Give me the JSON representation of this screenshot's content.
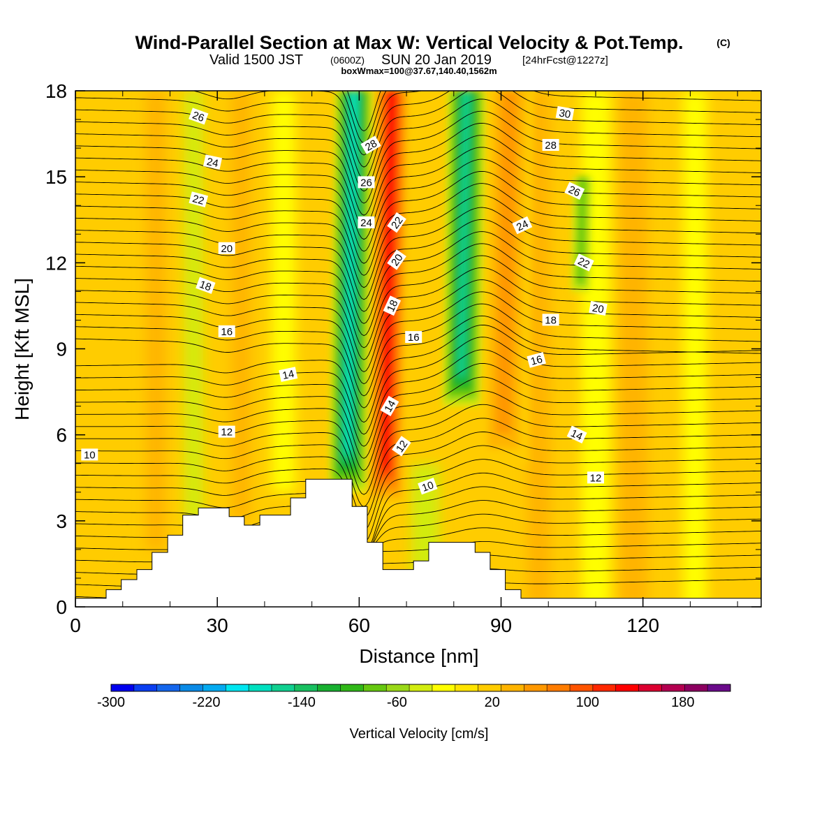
{
  "header": {
    "title": "Wind-Parallel Section at Max W: Vertical Velocity & Pot.Temp.",
    "title_tag": "(C)",
    "valid_a": "Valid 1500 JST",
    "valid_b": "(0600Z)",
    "valid_c": "SUN 20 Jan 2019",
    "valid_d": "[24hrFcst@1227z]",
    "boxline": "boxWmax=100@37.67,140.40,1562m"
  },
  "chart_data": {
    "type": "heatmap",
    "xlabel": "Distance [nm]",
    "ylabel": "Height [Kft MSL]",
    "xlim": [
      0,
      145
    ],
    "ylim": [
      0,
      18
    ],
    "xticks": [
      0,
      30,
      60,
      90,
      120
    ],
    "yticks": [
      0,
      3,
      6,
      9,
      12,
      15,
      18
    ],
    "colorbar": {
      "label": "Vertical Velocity [cm/s]",
      "range": [
        -300,
        220
      ],
      "step": 20,
      "tick_labels": [
        "-300",
        "-220",
        "-140",
        "-60",
        "20",
        "100",
        "180"
      ],
      "colors": [
        "#0000ee",
        "#0a3ef0",
        "#1466ec",
        "#0a8ae6",
        "#04aaf0",
        "#00e6f0",
        "#00e0c0",
        "#10d090",
        "#18c060",
        "#18b030",
        "#30b818",
        "#66c810",
        "#9ad818",
        "#d2ec10",
        "#ffff00",
        "#ffe400",
        "#ffcc00",
        "#ffb400",
        "#ff9800",
        "#ff7c00",
        "#ff5400",
        "#ff2800",
        "#ff0000",
        "#dc0030",
        "#b40050",
        "#8c0060",
        "#6a0a8a"
      ]
    },
    "velocity_features": [
      {
        "type": "downdraft",
        "x_from": 54,
        "x_to": 62,
        "z_from": 4,
        "z_to": 18,
        "peak": -160
      },
      {
        "type": "updraft",
        "x_from": 62,
        "x_to": 70,
        "z_from": 3.5,
        "z_to": 18,
        "peak": 140
      },
      {
        "type": "downdraft",
        "x_from": 78,
        "x_to": 86,
        "z_from": 7,
        "z_to": 18,
        "peak": -140
      },
      {
        "type": "updraft",
        "x_from": 86,
        "x_to": 96,
        "z_from": 5,
        "z_to": 18,
        "peak": 60
      },
      {
        "type": "downdraft",
        "x_from": 105,
        "x_to": 109,
        "z_from": 11,
        "z_to": 15,
        "peak": -60
      }
    ],
    "terrain": {
      "x": [
        0,
        6.5,
        6.5,
        9.7,
        9.7,
        13,
        13,
        16.2,
        16.2,
        19.5,
        19.5,
        22.7,
        22.7,
        26,
        26,
        32.5,
        32.5,
        35.7,
        35.7,
        39,
        39,
        45.5,
        45.5,
        48.7,
        48.7,
        58.5,
        58.5,
        61.7,
        61.7,
        65,
        65,
        71.5,
        71.5,
        74.7,
        74.7,
        84.5,
        84.5,
        87.7,
        87.7,
        90.9,
        90.9,
        94.2,
        94.2,
        145
      ],
      "z": [
        0.3,
        0.3,
        0.6,
        0.6,
        0.95,
        0.95,
        1.3,
        1.3,
        1.9,
        1.9,
        2.5,
        2.5,
        3.2,
        3.2,
        3.45,
        3.45,
        3.15,
        3.15,
        2.85,
        2.85,
        3.2,
        3.2,
        3.8,
        3.8,
        4.45,
        4.45,
        3.5,
        3.5,
        2.25,
        2.25,
        1.3,
        1.3,
        1.6,
        1.6,
        2.25,
        2.25,
        1.9,
        1.9,
        1.3,
        1.3,
        0.6,
        0.6,
        0.3,
        0.3
      ]
    },
    "theta_contour_labels": [
      {
        "value": "10",
        "x": 3,
        "z": 5.3
      },
      {
        "value": "12",
        "x": 32,
        "z": 6.1
      },
      {
        "value": "14",
        "x": 45,
        "z": 8.1,
        "rot": -12
      },
      {
        "value": "16",
        "x": 32,
        "z": 9.6
      },
      {
        "value": "18",
        "x": 27.5,
        "z": 11.2,
        "rot": 20
      },
      {
        "value": "20",
        "x": 32,
        "z": 12.5
      },
      {
        "value": "22",
        "x": 26,
        "z": 14.2,
        "rot": 15
      },
      {
        "value": "24",
        "x": 29,
        "z": 15.5,
        "rot": 12
      },
      {
        "value": "26",
        "x": 26,
        "z": 17.1,
        "rot": 20
      },
      {
        "value": "10",
        "x": 74.5,
        "z": 4.2,
        "rot": -20
      },
      {
        "value": "12",
        "x": 69,
        "z": 5.6,
        "rot": -55
      },
      {
        "value": "14",
        "x": 66.5,
        "z": 7,
        "rot": -60
      },
      {
        "value": "16",
        "x": 71.5,
        "z": 9.4
      },
      {
        "value": "18",
        "x": 67,
        "z": 10.5,
        "rot": -65
      },
      {
        "value": "20",
        "x": 68,
        "z": 12.1,
        "rot": -55
      },
      {
        "value": "22",
        "x": 68,
        "z": 13.4,
        "rot": -55
      },
      {
        "value": "24",
        "x": 61.5,
        "z": 13.4
      },
      {
        "value": "26",
        "x": 61.5,
        "z": 14.8
      },
      {
        "value": "28",
        "x": 62.5,
        "z": 16.1,
        "rot": -30
      },
      {
        "value": "12",
        "x": 110,
        "z": 4.5
      },
      {
        "value": "14",
        "x": 106,
        "z": 6,
        "rot": 25
      },
      {
        "value": "16",
        "x": 97.5,
        "z": 8.6,
        "rot": -15
      },
      {
        "value": "18",
        "x": 100.5,
        "z": 10
      },
      {
        "value": "20",
        "x": 110.5,
        "z": 10.4,
        "rot": 10
      },
      {
        "value": "22",
        "x": 107.5,
        "z": 12,
        "rot": 25
      },
      {
        "value": "24",
        "x": 94.5,
        "z": 13.3,
        "rot": -25
      },
      {
        "value": "26",
        "x": 105.5,
        "z": 14.5,
        "rot": 25
      },
      {
        "value": "28",
        "x": 100.5,
        "z": 16.1
      },
      {
        "value": "30",
        "x": 103.5,
        "z": 17.2,
        "rot": 10
      }
    ]
  }
}
